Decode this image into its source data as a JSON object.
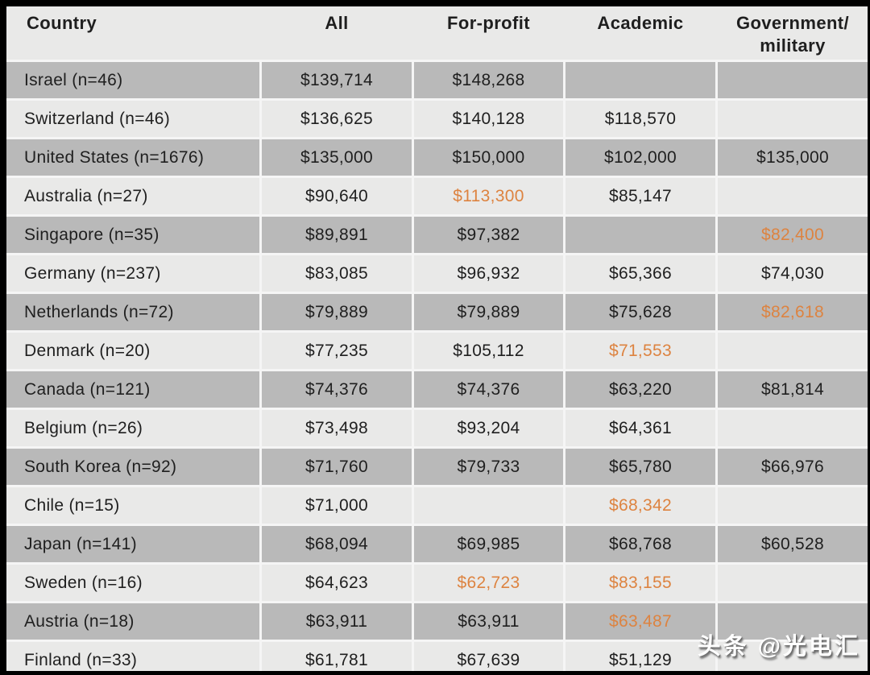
{
  "colors": {
    "frame": "#000000",
    "row_dark": "#b9b9b9",
    "row_light": "#e9e9e8",
    "header_bg": "#e9e9e8",
    "separator": "#f5f5f5",
    "text": "#1f1f1f",
    "accent_orange": "#dd8340",
    "watermark_text": "#ffffff"
  },
  "watermark": {
    "text": "头条 @光电汇"
  },
  "chart_data": {
    "type": "table",
    "currency_symbol": "$",
    "label_format": "{country} (n={n})",
    "legend_position": "none",
    "grid": false,
    "columns": [
      {
        "key": "country",
        "label": "Country"
      },
      {
        "key": "all",
        "label": "All"
      },
      {
        "key": "for_profit",
        "label": "For-profit"
      },
      {
        "key": "academic",
        "label": "Academic"
      },
      {
        "key": "government_military",
        "label": "Government/\nmilitary"
      }
    ],
    "rows": [
      {
        "country": "Israel",
        "n": 46,
        "values": {
          "all": 139714,
          "for_profit": 148268,
          "academic": null,
          "government_military": null
        },
        "highlighted": []
      },
      {
        "country": "Switzerland",
        "n": 46,
        "values": {
          "all": 136625,
          "for_profit": 140128,
          "academic": 118570,
          "government_military": null
        },
        "highlighted": []
      },
      {
        "country": "United States",
        "n": 1676,
        "values": {
          "all": 135000,
          "for_profit": 150000,
          "academic": 102000,
          "government_military": 135000
        },
        "highlighted": []
      },
      {
        "country": "Australia",
        "n": 27,
        "values": {
          "all": 90640,
          "for_profit": 113300,
          "academic": 85147,
          "government_military": null
        },
        "highlighted": [
          "for_profit"
        ]
      },
      {
        "country": "Singapore",
        "n": 35,
        "values": {
          "all": 89891,
          "for_profit": 97382,
          "academic": null,
          "government_military": 82400
        },
        "highlighted": [
          "government_military"
        ]
      },
      {
        "country": "Germany",
        "n": 237,
        "values": {
          "all": 83085,
          "for_profit": 96932,
          "academic": 65366,
          "government_military": 74030
        },
        "highlighted": []
      },
      {
        "country": "Netherlands",
        "n": 72,
        "values": {
          "all": 79889,
          "for_profit": 79889,
          "academic": 75628,
          "government_military": 82618
        },
        "highlighted": [
          "government_military"
        ]
      },
      {
        "country": "Denmark",
        "n": 20,
        "values": {
          "all": 77235,
          "for_profit": 105112,
          "academic": 71553,
          "government_military": null
        },
        "highlighted": [
          "academic"
        ]
      },
      {
        "country": "Canada",
        "n": 121,
        "values": {
          "all": 74376,
          "for_profit": 74376,
          "academic": 63220,
          "government_military": 81814
        },
        "highlighted": []
      },
      {
        "country": "Belgium",
        "n": 26,
        "values": {
          "all": 73498,
          "for_profit": 93204,
          "academic": 64361,
          "government_military": null
        },
        "highlighted": []
      },
      {
        "country": "South Korea",
        "n": 92,
        "values": {
          "all": 71760,
          "for_profit": 79733,
          "academic": 65780,
          "government_military": 66976
        },
        "highlighted": []
      },
      {
        "country": "Chile",
        "n": 15,
        "values": {
          "all": 71000,
          "for_profit": null,
          "academic": 68342,
          "government_military": null
        },
        "highlighted": [
          "academic"
        ]
      },
      {
        "country": "Japan",
        "n": 141,
        "values": {
          "all": 68094,
          "for_profit": 69985,
          "academic": 68768,
          "government_military": 60528
        },
        "highlighted": []
      },
      {
        "country": "Sweden",
        "n": 16,
        "values": {
          "all": 64623,
          "for_profit": 62723,
          "academic": 83155,
          "government_military": null
        },
        "highlighted": [
          "for_profit",
          "academic"
        ]
      },
      {
        "country": "Austria",
        "n": 18,
        "values": {
          "all": 63911,
          "for_profit": 63911,
          "academic": 63487,
          "government_military": null
        },
        "highlighted": [
          "academic"
        ]
      },
      {
        "country": "Finland",
        "n": 33,
        "values": {
          "all": 61781,
          "for_profit": 67639,
          "academic": 51129,
          "government_military": null
        },
        "highlighted": []
      }
    ]
  }
}
